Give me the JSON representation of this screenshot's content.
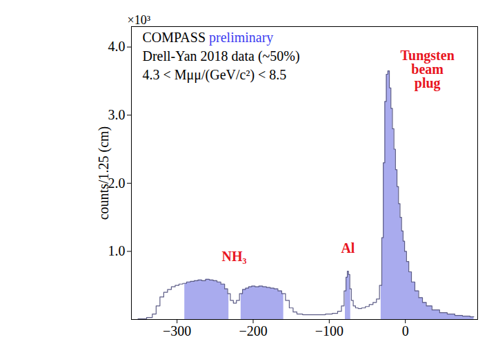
{
  "chart_data": {
    "type": "line",
    "title": "COMPASS",
    "title_note": "preliminary",
    "title_note_color": "#3b3bf0",
    "notes": [
      "Drell-Yan 2018 data (~50%)",
      "4.3 < Mμμ/(GeV/c²) < 8.5"
    ],
    "ylabel": "counts/1.25 (cm)",
    "y_multiplier": "×10³",
    "x": [
      -357.5,
      -345,
      -335,
      -330,
      -325,
      -320,
      -315,
      -310,
      -305,
      -300,
      -295,
      -290,
      -285,
      -280,
      -275,
      -270,
      -265,
      -260,
      -255,
      -250,
      -245,
      -240,
      -235,
      -232,
      -228,
      -224,
      -220,
      -216,
      -212,
      -208,
      -204,
      -200,
      -195,
      -190,
      -185,
      -180,
      -175,
      -170,
      -165,
      -160,
      -155,
      -150,
      -145,
      -140,
      -130,
      -120,
      -110,
      -100,
      -92,
      -86,
      -82,
      -79,
      -77,
      -75.5,
      -74,
      -72,
      -70,
      -67,
      -64,
      -60,
      -55,
      -50,
      -45,
      -40,
      -36,
      -32,
      -30,
      -28,
      -26,
      -24,
      -22,
      -20,
      -18,
      -16,
      -14,
      -12,
      -10,
      -8,
      -6,
      -4,
      -2,
      0,
      3,
      6,
      10,
      15,
      20,
      25,
      30,
      40,
      50,
      60,
      70,
      80,
      90
    ],
    "values": [
      0,
      0.01,
      0.03,
      0.08,
      0.2,
      0.33,
      0.4,
      0.44,
      0.48,
      0.5,
      0.52,
      0.53,
      0.55,
      0.56,
      0.57,
      0.58,
      0.57,
      0.59,
      0.58,
      0.57,
      0.55,
      0.52,
      0.45,
      0.38,
      0.28,
      0.24,
      0.28,
      0.38,
      0.44,
      0.46,
      0.48,
      0.49,
      0.48,
      0.49,
      0.48,
      0.47,
      0.46,
      0.45,
      0.42,
      0.38,
      0.28,
      0.17,
      0.11,
      0.08,
      0.07,
      0.07,
      0.07,
      0.08,
      0.09,
      0.12,
      0.2,
      0.42,
      0.62,
      0.71,
      0.66,
      0.45,
      0.28,
      0.2,
      0.17,
      0.16,
      0.17,
      0.19,
      0.22,
      0.25,
      0.3,
      0.5,
      1.2,
      2.3,
      3.2,
      3.6,
      3.65,
      3.4,
      3.1,
      2.8,
      2.5,
      2.2,
      1.95,
      1.7,
      1.5,
      1.3,
      1.15,
      1.0,
      0.85,
      0.7,
      0.55,
      0.42,
      0.32,
      0.25,
      0.2,
      0.14,
      0.1,
      0.08,
      0.06,
      0.05,
      0.04
    ],
    "color": "#5c5c86",
    "line_style": "step",
    "fill_color": "#a9abee",
    "label_color": "#e8141e",
    "regions": [
      {
        "name": "NH₃",
        "ranges": [
          [
            -290,
            -232
          ],
          [
            -216,
            -160
          ]
        ]
      },
      {
        "name": "Al",
        "ranges": [
          [
            -79,
            -72
          ]
        ]
      },
      {
        "name": "Tungsten beam plug",
        "ranges": [
          [
            -32,
            90
          ]
        ]
      }
    ],
    "xlim": [
      -360,
      95
    ],
    "ylim": [
      0,
      4.3
    ],
    "xticks": [
      -300,
      -200,
      -100,
      0
    ],
    "yticks": [
      1,
      2,
      3,
      4
    ],
    "grid": false
  }
}
